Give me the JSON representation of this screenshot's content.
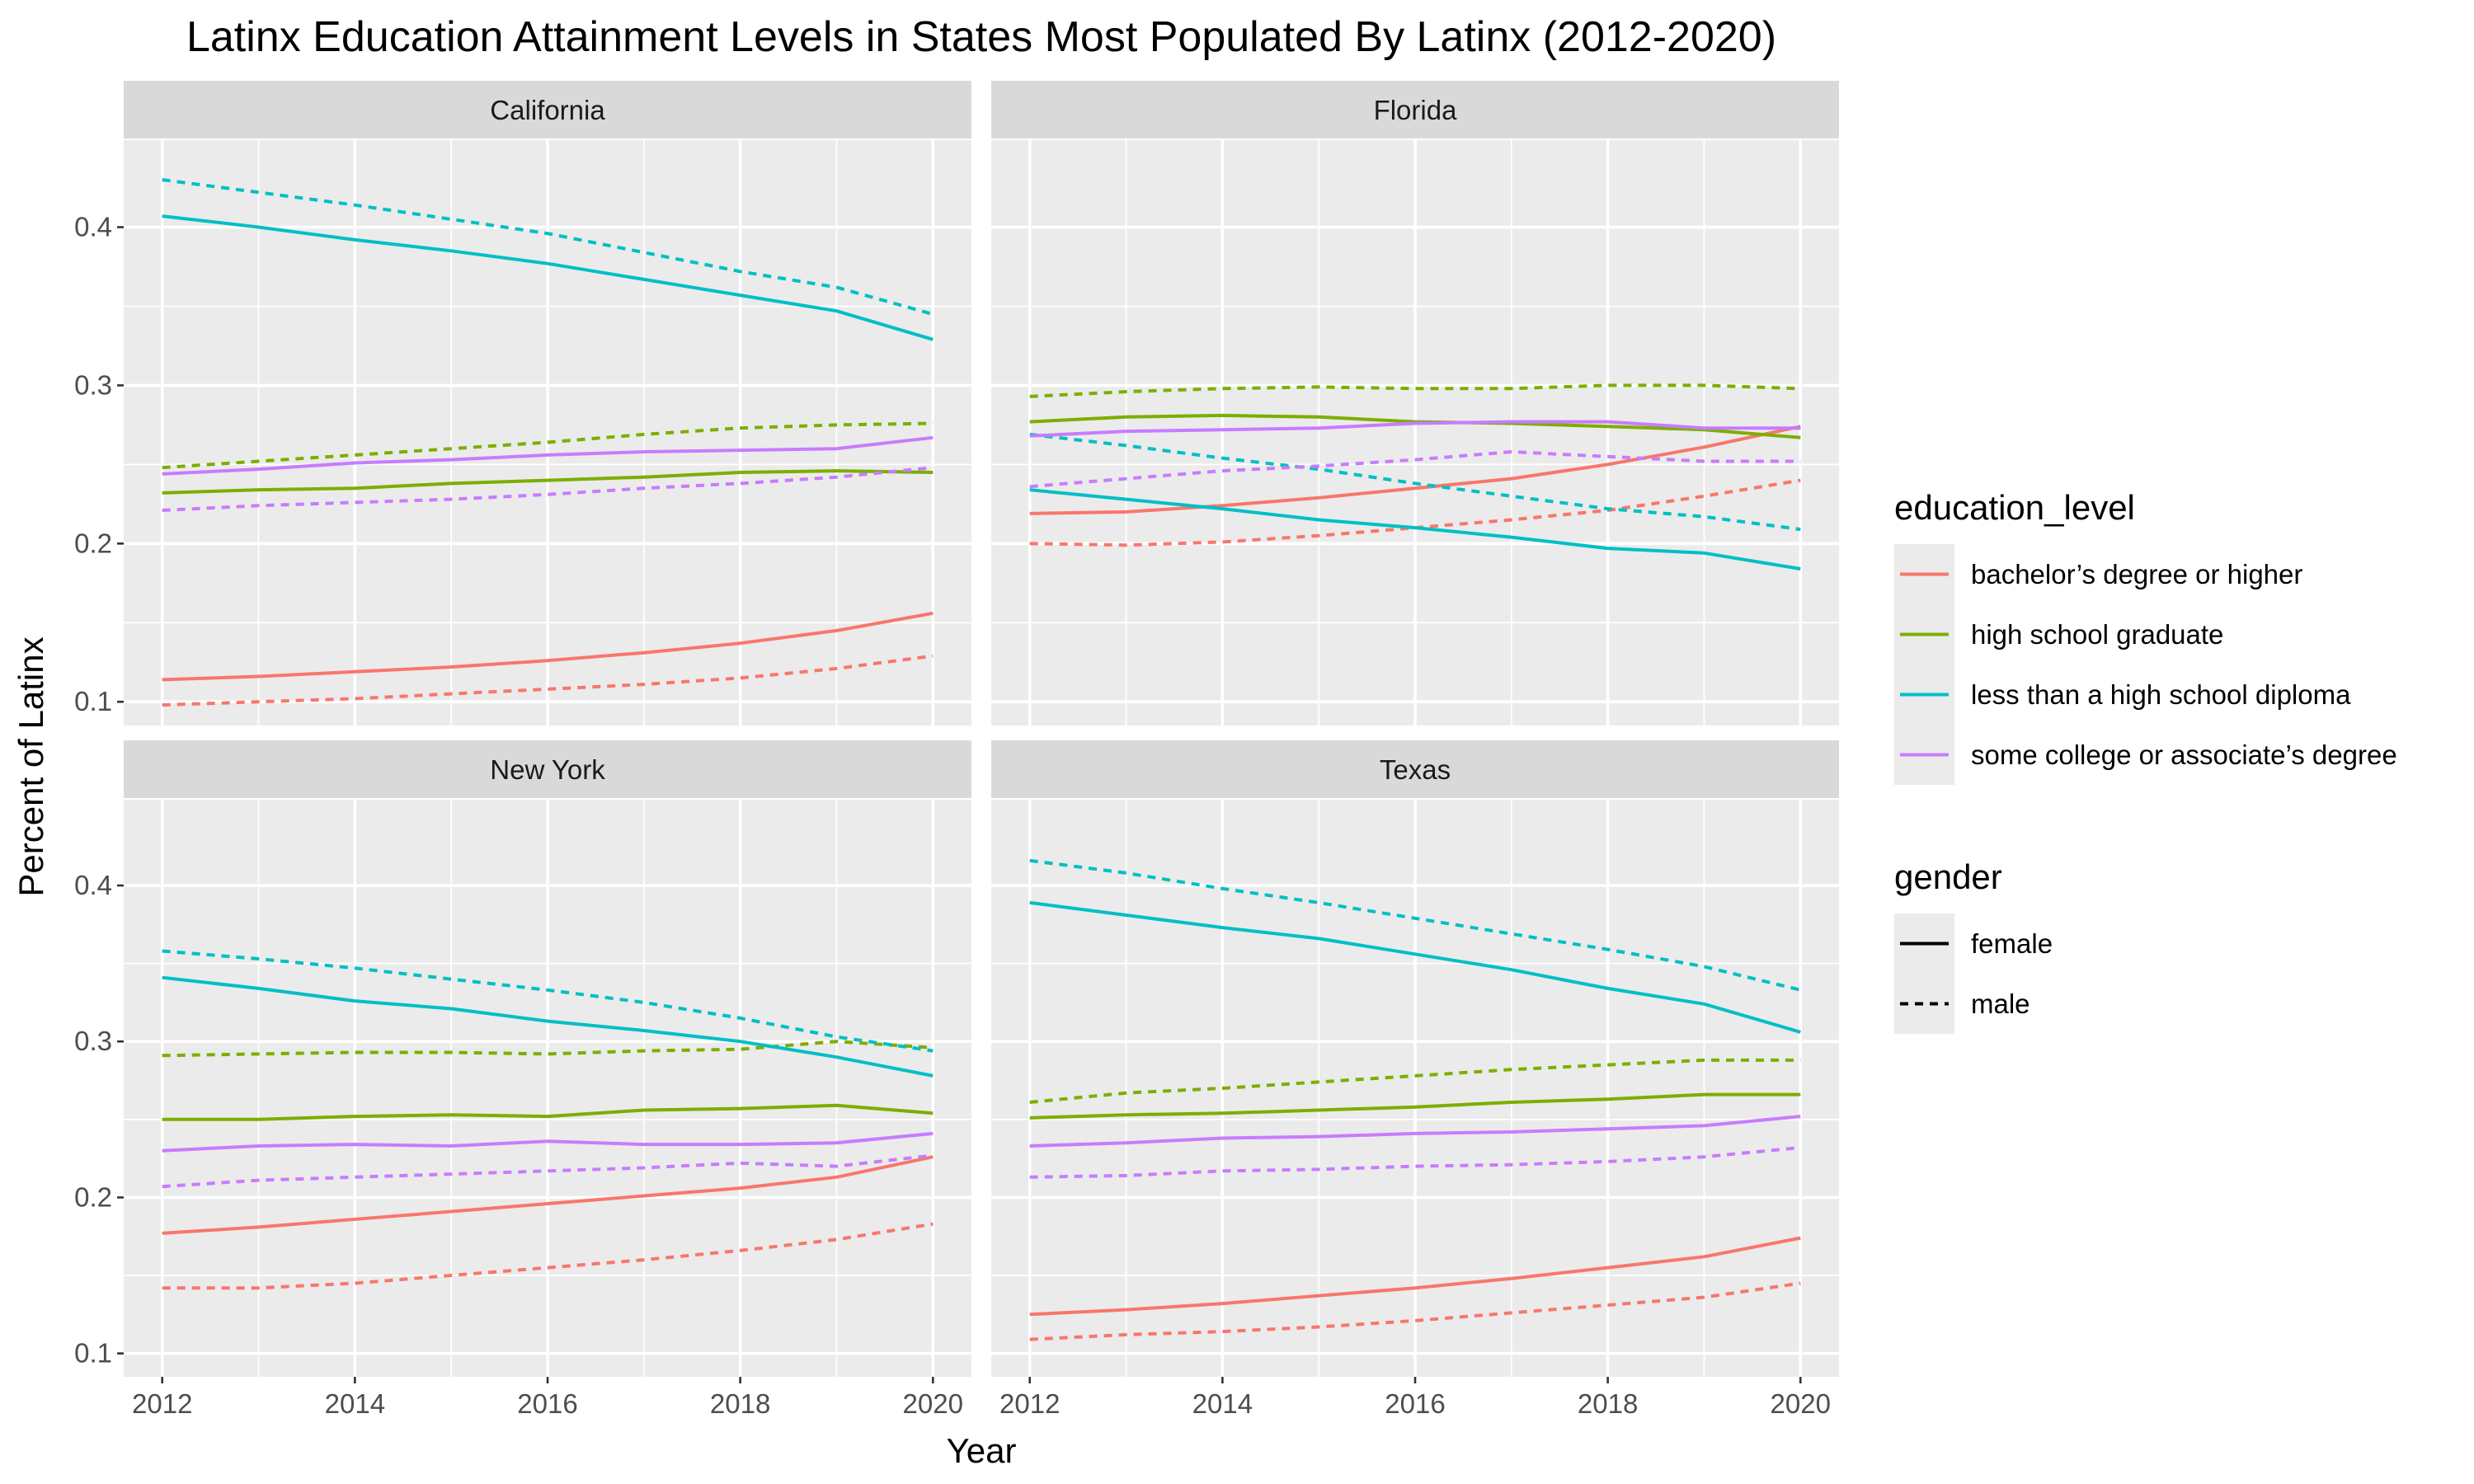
{
  "chart_data": {
    "type": "line",
    "title": "Latinx Education Attainment Levels in States Most Populated By Latinx (2012-2020)",
    "xlabel": "Year",
    "ylabel": "Percent of Latinx",
    "x": [
      2012,
      2013,
      2014,
      2015,
      2016,
      2017,
      2018,
      2019,
      2020
    ],
    "x_ticks": [
      2012,
      2014,
      2016,
      2018,
      2020
    ],
    "y_ticks": [
      0.1,
      0.2,
      0.3,
      0.4
    ],
    "y_tick_labels": [
      "0.1",
      "0.2",
      "0.3",
      "0.4"
    ],
    "x_tick_labels": [
      "2012",
      "2014",
      "2016",
      "2018",
      "2020"
    ],
    "xlim": [
      2011.6,
      2020.4
    ],
    "ylim": [
      0.085,
      0.455
    ],
    "grid": true,
    "legend": {
      "placement": "right",
      "color_title": "education_level",
      "linetype_title": "gender",
      "education_levels": [
        {
          "label": "bachelor’s degree or higher",
          "color": "#F8766D"
        },
        {
          "label": "high school graduate",
          "color": "#7CAE00"
        },
        {
          "label": "less than a high school diploma",
          "color": "#00BFC4"
        },
        {
          "label": "some college or associate’s degree",
          "color": "#C77CFF"
        }
      ],
      "genders": [
        {
          "label": "female",
          "dash": "solid"
        },
        {
          "label": "male",
          "dash": "dashed"
        }
      ]
    },
    "facets": [
      {
        "state": "California",
        "series": [
          {
            "education_level": "bachelor’s degree or higher",
            "gender": "female",
            "values": [
              0.114,
              0.116,
              0.119,
              0.122,
              0.126,
              0.131,
              0.137,
              0.145,
              0.156
            ]
          },
          {
            "education_level": "bachelor’s degree or higher",
            "gender": "male",
            "values": [
              0.098,
              0.1,
              0.102,
              0.105,
              0.108,
              0.111,
              0.115,
              0.121,
              0.129
            ]
          },
          {
            "education_level": "high school graduate",
            "gender": "female",
            "values": [
              0.232,
              0.234,
              0.235,
              0.238,
              0.24,
              0.242,
              0.245,
              0.246,
              0.245
            ]
          },
          {
            "education_level": "high school graduate",
            "gender": "male",
            "values": [
              0.248,
              0.252,
              0.256,
              0.26,
              0.264,
              0.269,
              0.273,
              0.275,
              0.276
            ]
          },
          {
            "education_level": "less than a high school diploma",
            "gender": "female",
            "values": [
              0.407,
              0.4,
              0.392,
              0.385,
              0.377,
              0.367,
              0.357,
              0.347,
              0.329
            ]
          },
          {
            "education_level": "less than a high school diploma",
            "gender": "male",
            "values": [
              0.43,
              0.422,
              0.414,
              0.405,
              0.396,
              0.384,
              0.372,
              0.362,
              0.345
            ]
          },
          {
            "education_level": "some college or associate’s degree",
            "gender": "female",
            "values": [
              0.244,
              0.247,
              0.251,
              0.253,
              0.256,
              0.258,
              0.259,
              0.26,
              0.267
            ]
          },
          {
            "education_level": "some college or associate’s degree",
            "gender": "male",
            "values": [
              0.221,
              0.224,
              0.226,
              0.228,
              0.231,
              0.235,
              0.238,
              0.242,
              0.248
            ]
          }
        ]
      },
      {
        "state": "Florida",
        "series": [
          {
            "education_level": "bachelor’s degree or higher",
            "gender": "female",
            "values": [
              0.219,
              0.22,
              0.224,
              0.229,
              0.235,
              0.241,
              0.25,
              0.261,
              0.274
            ]
          },
          {
            "education_level": "bachelor’s degree or higher",
            "gender": "male",
            "values": [
              0.2,
              0.199,
              0.201,
              0.205,
              0.21,
              0.215,
              0.221,
              0.23,
              0.24
            ]
          },
          {
            "education_level": "high school graduate",
            "gender": "female",
            "values": [
              0.277,
              0.28,
              0.281,
              0.28,
              0.277,
              0.276,
              0.274,
              0.272,
              0.267
            ]
          },
          {
            "education_level": "high school graduate",
            "gender": "male",
            "values": [
              0.293,
              0.296,
              0.298,
              0.299,
              0.298,
              0.298,
              0.3,
              0.3,
              0.298
            ]
          },
          {
            "education_level": "less than a high school diploma",
            "gender": "female",
            "values": [
              0.234,
              0.228,
              0.222,
              0.215,
              0.21,
              0.204,
              0.197,
              0.194,
              0.184
            ]
          },
          {
            "education_level": "less than a high school diploma",
            "gender": "male",
            "values": [
              0.269,
              0.262,
              0.254,
              0.247,
              0.238,
              0.23,
              0.222,
              0.217,
              0.209
            ]
          },
          {
            "education_level": "some college or associate’s degree",
            "gender": "female",
            "values": [
              0.268,
              0.271,
              0.272,
              0.273,
              0.276,
              0.277,
              0.277,
              0.273,
              0.273
            ]
          },
          {
            "education_level": "some college or associate’s degree",
            "gender": "male",
            "values": [
              0.236,
              0.241,
              0.246,
              0.249,
              0.253,
              0.258,
              0.255,
              0.252,
              0.252
            ]
          }
        ]
      },
      {
        "state": "New York",
        "series": [
          {
            "education_level": "bachelor’s degree or higher",
            "gender": "female",
            "values": [
              0.177,
              0.181,
              0.186,
              0.191,
              0.196,
              0.201,
              0.206,
              0.213,
              0.226
            ]
          },
          {
            "education_level": "bachelor’s degree or higher",
            "gender": "male",
            "values": [
              0.142,
              0.142,
              0.145,
              0.15,
              0.155,
              0.16,
              0.166,
              0.173,
              0.183
            ]
          },
          {
            "education_level": "high school graduate",
            "gender": "female",
            "values": [
              0.25,
              0.25,
              0.252,
              0.253,
              0.252,
              0.256,
              0.257,
              0.259,
              0.254
            ]
          },
          {
            "education_level": "high school graduate",
            "gender": "male",
            "values": [
              0.291,
              0.292,
              0.293,
              0.293,
              0.292,
              0.294,
              0.295,
              0.3,
              0.296
            ]
          },
          {
            "education_level": "less than a high school diploma",
            "gender": "female",
            "values": [
              0.341,
              0.334,
              0.326,
              0.321,
              0.313,
              0.307,
              0.3,
              0.29,
              0.278
            ]
          },
          {
            "education_level": "less than a high school diploma",
            "gender": "male",
            "values": [
              0.358,
              0.353,
              0.347,
              0.34,
              0.333,
              0.325,
              0.315,
              0.303,
              0.294
            ]
          },
          {
            "education_level": "some college or associate’s degree",
            "gender": "female",
            "values": [
              0.23,
              0.233,
              0.234,
              0.233,
              0.236,
              0.234,
              0.234,
              0.235,
              0.241
            ]
          },
          {
            "education_level": "some college or associate’s degree",
            "gender": "male",
            "values": [
              0.207,
              0.211,
              0.213,
              0.215,
              0.217,
              0.219,
              0.222,
              0.22,
              0.227
            ]
          }
        ]
      },
      {
        "state": "Texas",
        "series": [
          {
            "education_level": "bachelor’s degree or higher",
            "gender": "female",
            "values": [
              0.125,
              0.128,
              0.132,
              0.137,
              0.142,
              0.148,
              0.155,
              0.162,
              0.174
            ]
          },
          {
            "education_level": "bachelor’s degree or higher",
            "gender": "male",
            "values": [
              0.109,
              0.112,
              0.114,
              0.117,
              0.121,
              0.126,
              0.131,
              0.136,
              0.145
            ]
          },
          {
            "education_level": "high school graduate",
            "gender": "female",
            "values": [
              0.251,
              0.253,
              0.254,
              0.256,
              0.258,
              0.261,
              0.263,
              0.266,
              0.266
            ]
          },
          {
            "education_level": "high school graduate",
            "gender": "male",
            "values": [
              0.261,
              0.267,
              0.27,
              0.274,
              0.278,
              0.282,
              0.285,
              0.288,
              0.288
            ]
          },
          {
            "education_level": "less than a high school diploma",
            "gender": "female",
            "values": [
              0.389,
              0.381,
              0.373,
              0.366,
              0.356,
              0.346,
              0.334,
              0.324,
              0.306
            ]
          },
          {
            "education_level": "less than a high school diploma",
            "gender": "male",
            "values": [
              0.416,
              0.408,
              0.398,
              0.389,
              0.379,
              0.369,
              0.359,
              0.348,
              0.333
            ]
          },
          {
            "education_level": "some college or associate’s degree",
            "gender": "female",
            "values": [
              0.233,
              0.235,
              0.238,
              0.239,
              0.241,
              0.242,
              0.244,
              0.246,
              0.252
            ]
          },
          {
            "education_level": "some college or associate’s degree",
            "gender": "male",
            "values": [
              0.213,
              0.214,
              0.217,
              0.218,
              0.22,
              0.221,
              0.223,
              0.226,
              0.232
            ]
          }
        ]
      }
    ]
  }
}
